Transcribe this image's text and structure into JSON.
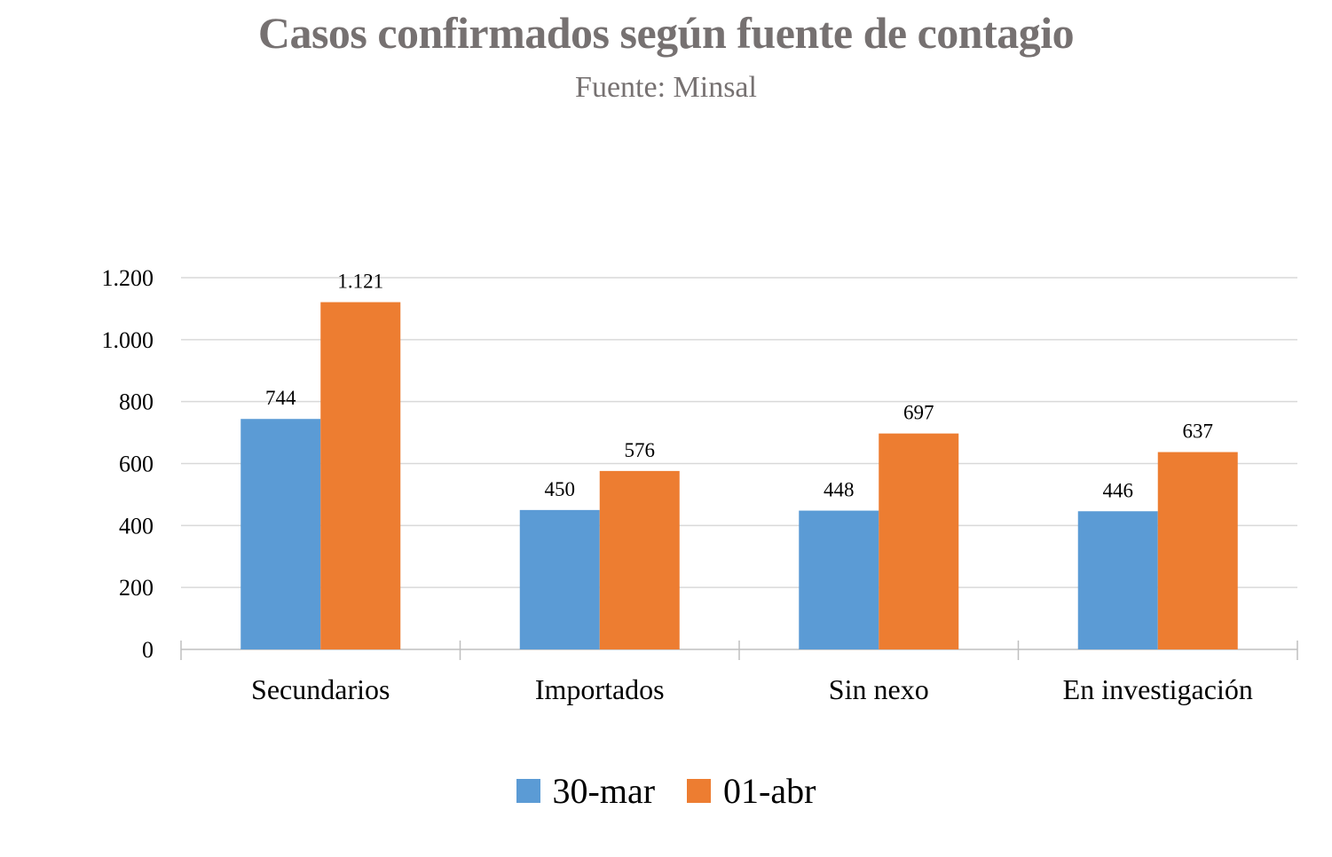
{
  "colors": {
    "series_1": "#5B9BD5",
    "series_2": "#ED7D31",
    "gridline": "#D9D9D9",
    "axis": "#BFBFBF",
    "title": "#767171"
  },
  "chart_data": {
    "type": "bar",
    "title": "Casos confirmados según fuente de contagio",
    "subtitle": "Fuente: Minsal",
    "xlabel": "",
    "ylabel": "",
    "categories": [
      "Secundarios",
      "Importados",
      "Sin nexo",
      "En investigación"
    ],
    "series": [
      {
        "name": "30-mar",
        "values": [
          744,
          450,
          448,
          446
        ],
        "labels": [
          "744",
          "450",
          "448",
          "446"
        ]
      },
      {
        "name": "01-abr",
        "values": [
          1121,
          576,
          697,
          637
        ],
        "labels": [
          "1.121",
          "576",
          "697",
          "637"
        ]
      }
    ],
    "ylim": [
      0,
      1200
    ],
    "yticks": [
      0,
      200,
      400,
      600,
      800,
      1000,
      1200
    ],
    "ytick_labels": [
      "0",
      "200",
      "400",
      "600",
      "800",
      "1.000",
      "1.200"
    ],
    "grid": true,
    "legend_position": "bottom"
  }
}
